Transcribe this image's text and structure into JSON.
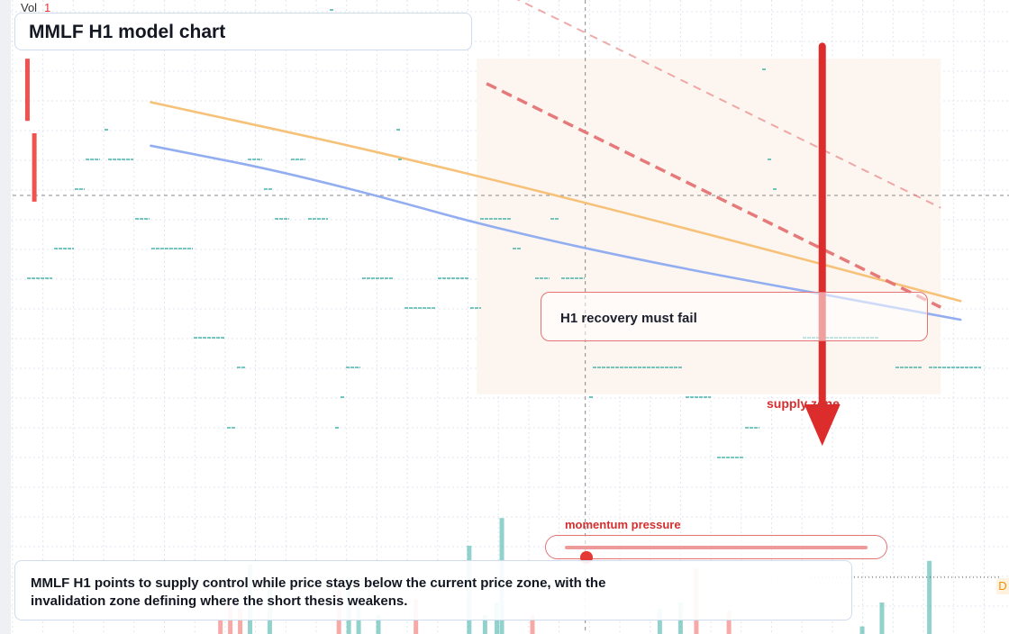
{
  "header": {
    "vol_label": "Vol",
    "vol_value": "1"
  },
  "title": "MMLF H1 model chart",
  "callout": "H1 recovery must fail",
  "zone_label": "supply zone",
  "momentum": {
    "label": "momentum pressure",
    "level": 0.07
  },
  "summary": "MMLF H1 points to supply control while price stays below the current price zone, with the invalidation zone defining where the short thesis weakens.",
  "price_tag": "D",
  "colors": {
    "up": "#26a69a",
    "down": "#ef5350",
    "upper_line": "#f6c27a",
    "lower_line": "#93aef0",
    "projection": "#e57373",
    "arrow": "#dd2c2c",
    "zone": "#fdf6f0"
  },
  "chart_data": {
    "type": "line",
    "x_range": [
      0,
      100
    ],
    "y_range": [
      0,
      100
    ],
    "series": [
      {
        "points": [
          [
            14,
            85
          ],
          [
            40,
            76
          ],
          [
            70,
            64
          ],
          [
            96,
            53
          ]
        ]
      },
      {
        "points": [
          [
            14,
            78
          ],
          [
            30,
            73
          ],
          [
            55,
            62
          ],
          [
            96,
            50
          ]
        ]
      }
    ],
    "projections": [
      {
        "style": "dashed-bold",
        "points": [
          [
            48,
            88
          ],
          [
            94,
            52
          ]
        ]
      },
      {
        "style": "dashed-light",
        "points": [
          [
            48,
            104
          ],
          [
            94,
            68
          ]
        ]
      }
    ],
    "target_arrow": {
      "x": 82,
      "from": 94,
      "to": 30
    },
    "supply_zone": {
      "x": [
        47,
        94
      ],
      "y": [
        38,
        92
      ]
    },
    "price_level": 70,
    "crosshair_x": 58,
    "candles": [
      {
        "x": 1.5,
        "open": 92,
        "close": 82,
        "high": 92,
        "low": 82
      },
      {
        "x": 2.2,
        "open": 80,
        "close": 69,
        "high": 80,
        "low": 69
      }
    ],
    "volume": [
      {
        "x": 21,
        "v": 12,
        "up": false
      },
      {
        "x": 22,
        "v": 25,
        "up": false
      },
      {
        "x": 23,
        "v": 20,
        "up": false
      },
      {
        "x": 24,
        "v": 55,
        "up": true
      },
      {
        "x": 26,
        "v": 40,
        "up": true
      },
      {
        "x": 33,
        "v": 35,
        "up": false
      },
      {
        "x": 34,
        "v": 45,
        "up": true
      },
      {
        "x": 35,
        "v": 30,
        "up": true
      },
      {
        "x": 37,
        "v": 15,
        "up": true
      },
      {
        "x": 40.8,
        "v": 28,
        "up": false
      },
      {
        "x": 46.2,
        "v": 70,
        "up": true
      },
      {
        "x": 47.8,
        "v": 15,
        "up": true
      },
      {
        "x": 49,
        "v": 25,
        "up": true
      },
      {
        "x": 49.5,
        "v": 92,
        "up": true
      },
      {
        "x": 52.6,
        "v": 15,
        "up": false
      },
      {
        "x": 65.5,
        "v": 20,
        "up": true
      },
      {
        "x": 67.6,
        "v": 25,
        "up": true
      },
      {
        "x": 69.2,
        "v": 52,
        "up": false
      },
      {
        "x": 72.5,
        "v": 18,
        "up": false
      },
      {
        "x": 86,
        "v": 6,
        "up": true
      },
      {
        "x": 88,
        "v": 25,
        "up": true
      },
      {
        "x": 92.8,
        "v": 58,
        "up": true
      }
    ]
  }
}
